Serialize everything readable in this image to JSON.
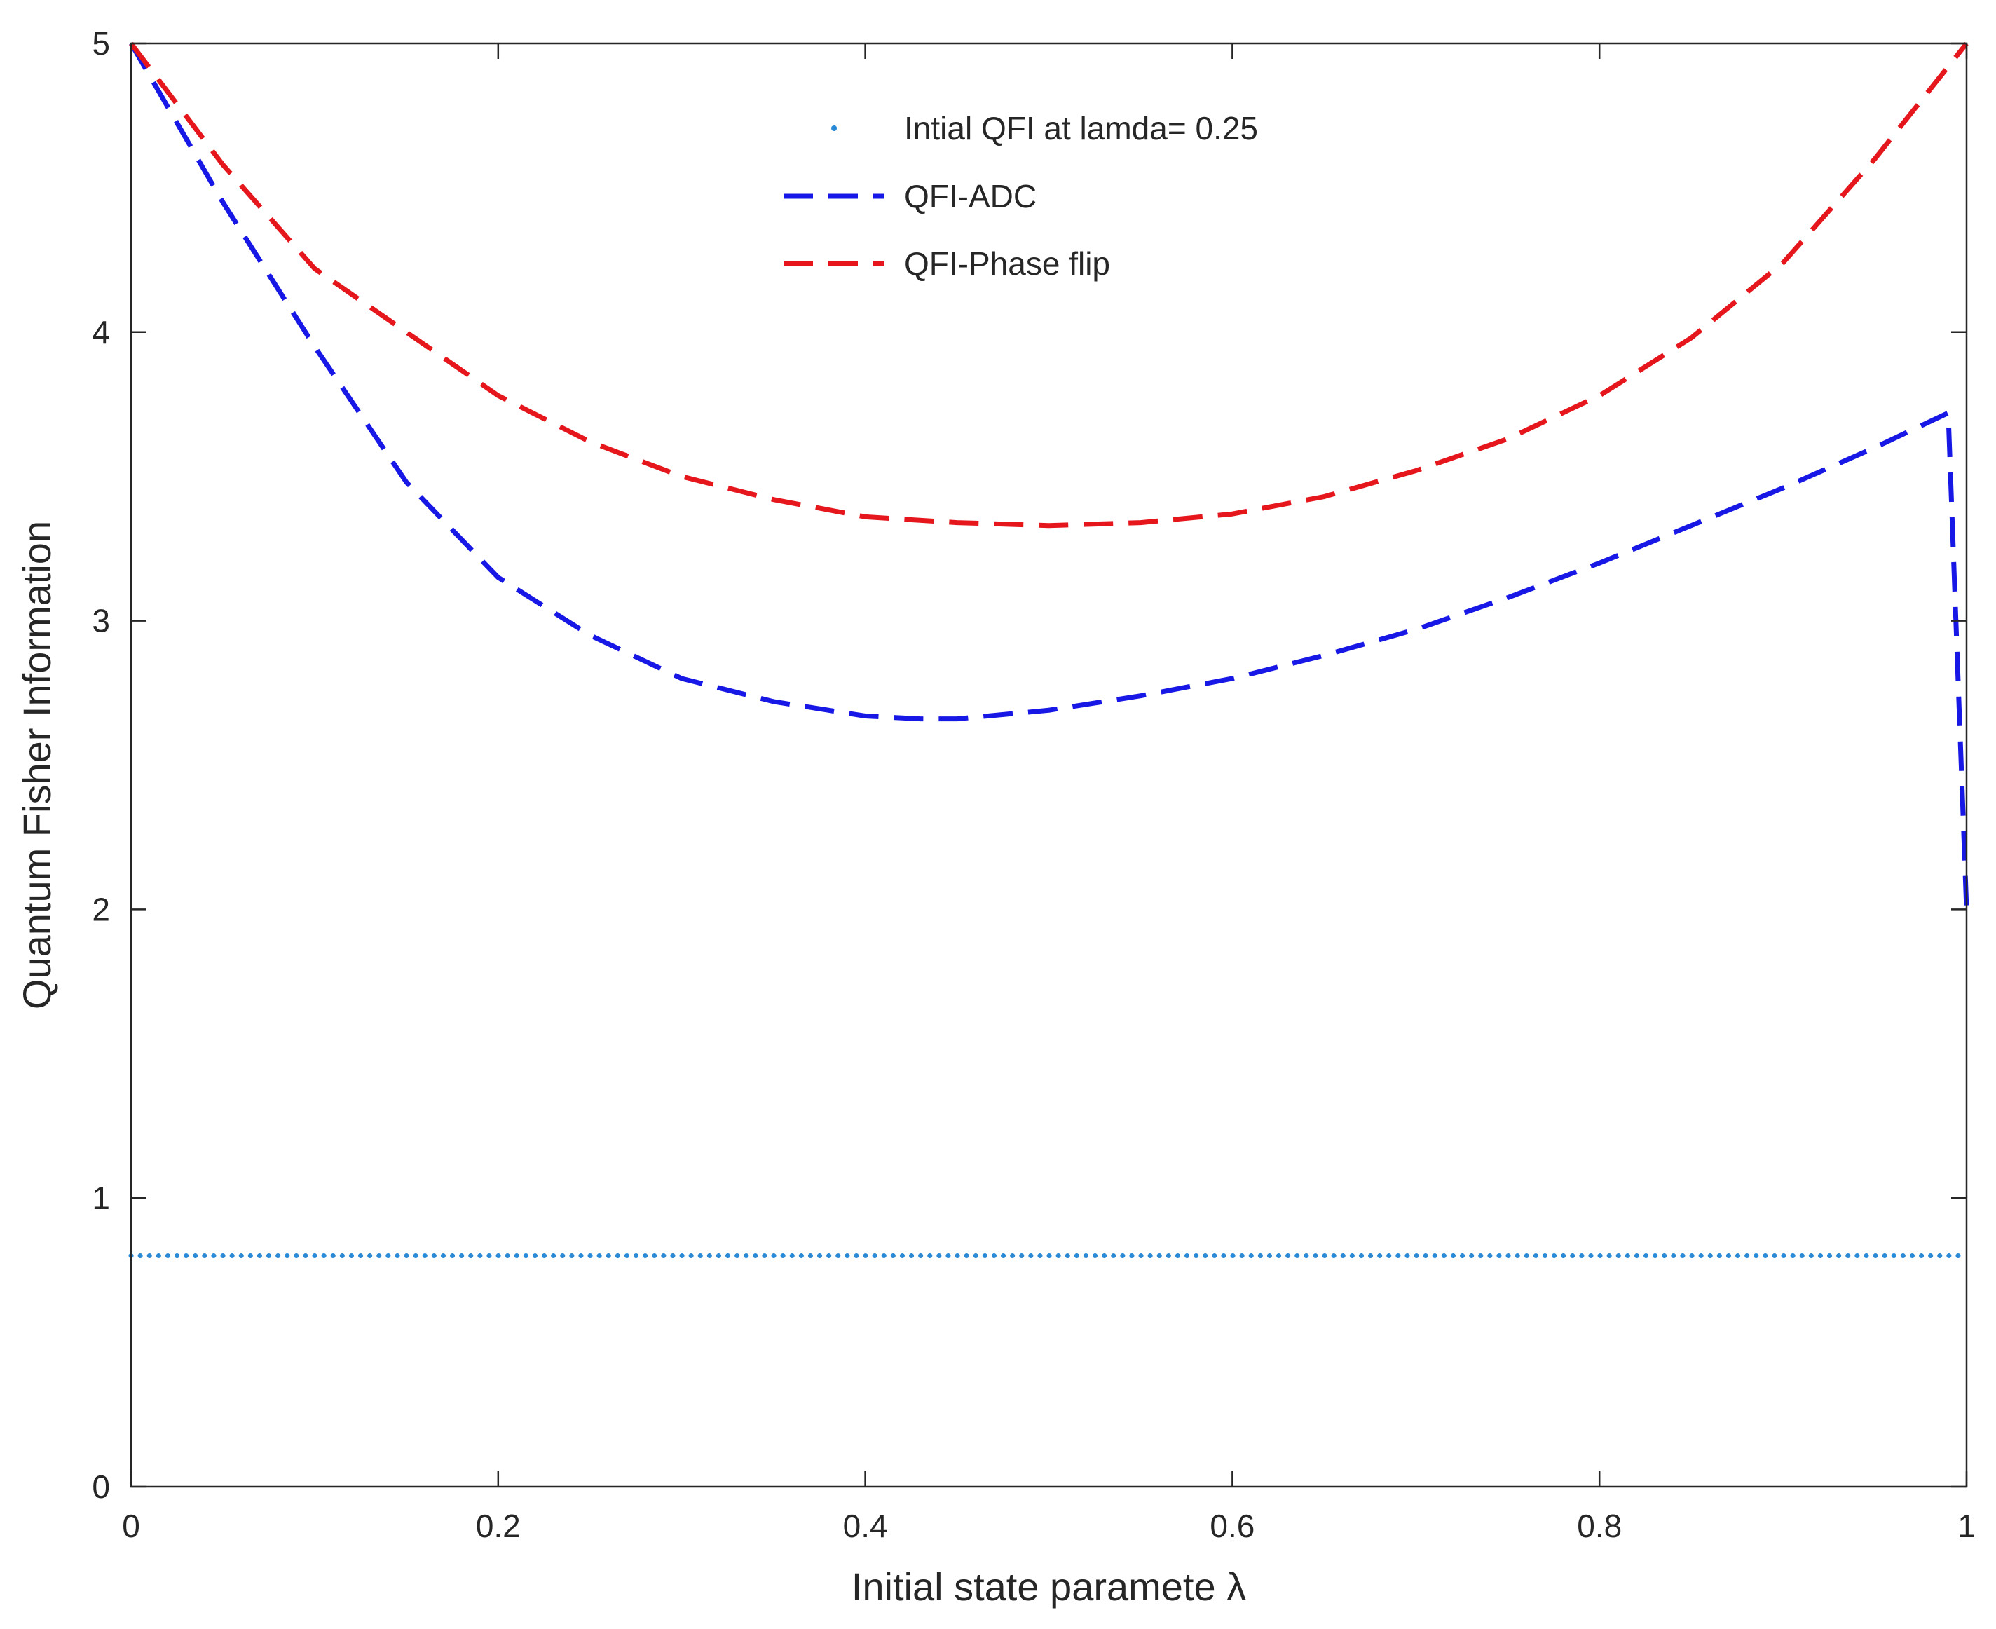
{
  "chart_data": {
    "type": "line",
    "title": "",
    "xlabel": "Initial state paramete λ",
    "ylabel": "Quantum Fisher Information",
    "xlim": [
      0,
      1
    ],
    "ylim": [
      0,
      5
    ],
    "xticks": [
      "0",
      "0.2",
      "0.4",
      "0.6",
      "0.8",
      "1"
    ],
    "yticks": [
      "0",
      "1",
      "2",
      "3",
      "4",
      "5"
    ],
    "legend_position": "top-center",
    "series": [
      {
        "name": "Intial QFI at lamda= 0.25",
        "style": "dotted",
        "color": "#2a8ad6",
        "x": [
          0,
          1
        ],
        "y": [
          0.8,
          0.8
        ]
      },
      {
        "name": "QFI-ADC",
        "style": "dashed",
        "color": "#1717e6",
        "x": [
          0,
          0.05,
          0.1,
          0.15,
          0.2,
          0.25,
          0.3,
          0.35,
          0.4,
          0.43,
          0.45,
          0.5,
          0.55,
          0.6,
          0.65,
          0.7,
          0.75,
          0.8,
          0.85,
          0.9,
          0.95,
          0.99,
          1.0
        ],
        "y": [
          5.0,
          4.45,
          3.95,
          3.48,
          3.15,
          2.95,
          2.8,
          2.72,
          2.67,
          2.66,
          2.66,
          2.69,
          2.74,
          2.8,
          2.88,
          2.97,
          3.08,
          3.2,
          3.33,
          3.46,
          3.6,
          3.72,
          2.0
        ]
      },
      {
        "name": "QFI-Phase flip",
        "style": "dashed",
        "color": "#e6161d",
        "x": [
          0,
          0.05,
          0.1,
          0.15,
          0.2,
          0.25,
          0.3,
          0.35,
          0.4,
          0.45,
          0.5,
          0.55,
          0.6,
          0.65,
          0.7,
          0.75,
          0.8,
          0.85,
          0.9,
          0.95,
          1.0
        ],
        "y": [
          5.0,
          4.58,
          4.22,
          4.0,
          3.78,
          3.62,
          3.5,
          3.42,
          3.36,
          3.34,
          3.33,
          3.34,
          3.37,
          3.43,
          3.52,
          3.63,
          3.78,
          3.98,
          4.24,
          4.6,
          5.0
        ]
      }
    ]
  }
}
